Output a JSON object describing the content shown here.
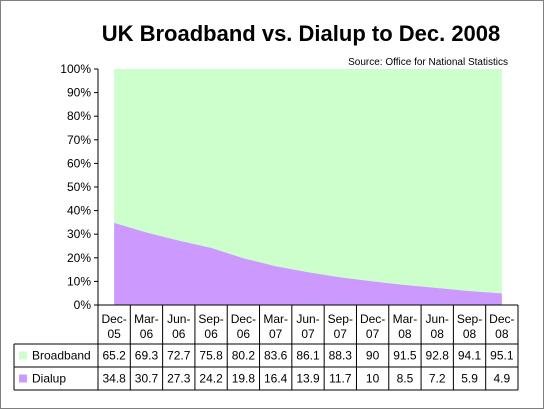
{
  "chart_data": {
    "type": "area",
    "stacked": "percent",
    "title": "UK Broadband vs. Dialup to Dec. 2008",
    "subtitle": "Source:  Office for National Statistics",
    "xlabel": "",
    "ylabel": "",
    "ylim": [
      0,
      100
    ],
    "y_ticks": [
      "0%",
      "10%",
      "20%",
      "30%",
      "40%",
      "50%",
      "60%",
      "70%",
      "80%",
      "90%",
      "100%"
    ],
    "categories": [
      [
        "Dec-",
        "05"
      ],
      [
        "Mar-",
        "06"
      ],
      [
        "Jun-",
        "06"
      ],
      [
        "Sep-",
        "06"
      ],
      [
        "Dec-",
        "06"
      ],
      [
        "Mar-",
        "07"
      ],
      [
        "Jun-",
        "07"
      ],
      [
        "Sep-",
        "07"
      ],
      [
        "Dec-",
        "07"
      ],
      [
        "Mar-",
        "08"
      ],
      [
        "Jun-",
        "08"
      ],
      [
        "Sep-",
        "08"
      ],
      [
        "Dec-",
        "08"
      ]
    ],
    "series": [
      {
        "name": "Dialup",
        "color": "#cc99ff",
        "values": [
          34.8,
          30.7,
          27.3,
          24.2,
          19.8,
          16.4,
          13.9,
          11.7,
          10,
          8.5,
          7.2,
          5.9,
          4.9
        ],
        "labels": [
          "34.8",
          "30.7",
          "27.3",
          "24.2",
          "19.8",
          "16.4",
          "13.9",
          "11.7",
          "10",
          "8.5",
          "7.2",
          "5.9",
          "4.9"
        ]
      },
      {
        "name": "Broadband",
        "color": "#ccffcc",
        "values": [
          65.2,
          69.3,
          72.7,
          75.8,
          80.2,
          83.6,
          86.1,
          88.3,
          90,
          91.5,
          92.8,
          94.1,
          95.1
        ],
        "labels": [
          "65.2",
          "69.3",
          "72.7",
          "75.8",
          "80.2",
          "83.6",
          "86.1",
          "88.3",
          "90",
          "91.5",
          "92.8",
          "94.1",
          "95.1"
        ]
      }
    ],
    "table_rows": [
      "Broadband",
      "Dialup"
    ],
    "grid": "horizontal",
    "legend": "data-table"
  }
}
